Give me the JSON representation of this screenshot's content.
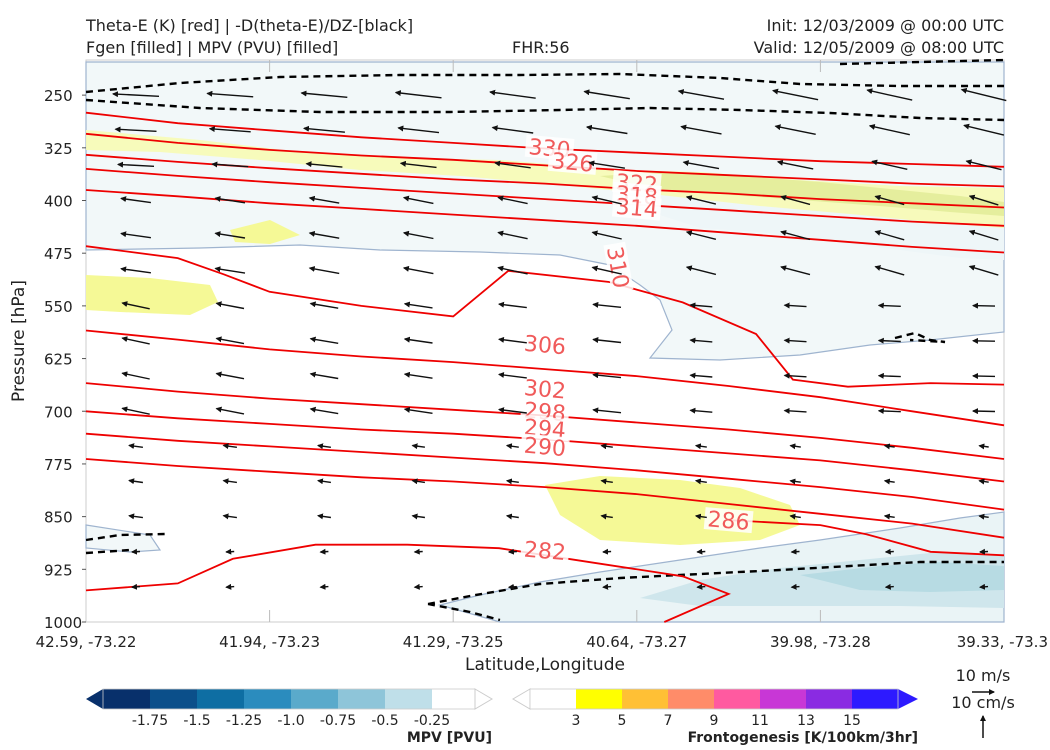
{
  "header": {
    "title_left_1": "Theta-E (K) [red] | -D(theta-E)/DZ-[black]",
    "title_left_2": "Fgen [filled] | MPV (PVU) [filled]",
    "fhr": "FHR:56",
    "init": "Init: 12/03/2009 @ 00:00 UTC",
    "valid": "Valid: 12/05/2009 @ 08:00 UTC"
  },
  "chart_data": {
    "type": "cross-section",
    "ylabel": "Pressure [hPa]",
    "xlabel": "Latitude,Longitude",
    "y_ticks": [
      "250",
      "325",
      "400",
      "475",
      "550",
      "625",
      "700",
      "775",
      "850",
      "925",
      "1000"
    ],
    "ylim": [
      1000,
      200
    ],
    "x_ticks": [
      "42.59, -73.22",
      "41.94, -73.23",
      "41.29, -73.25",
      "40.64, -73.27",
      "39.98, -73.28",
      "39.33, -73.3"
    ],
    "theta_e_contours": [
      {
        "label": "330",
        "points": [
          [
            0,
            275
          ],
          [
            10,
            290
          ],
          [
            20,
            300
          ],
          [
            30,
            310
          ],
          [
            40,
            318
          ],
          [
            50,
            326
          ],
          [
            60,
            332
          ],
          [
            70,
            338
          ],
          [
            80,
            344
          ],
          [
            90,
            348
          ],
          [
            100,
            352
          ]
        ]
      },
      {
        "label": "326",
        "points": [
          [
            0,
            305
          ],
          [
            10,
            318
          ],
          [
            20,
            328
          ],
          [
            30,
            336
          ],
          [
            40,
            342
          ],
          [
            50,
            350
          ],
          [
            60,
            358
          ],
          [
            70,
            364
          ],
          [
            80,
            370
          ],
          [
            90,
            376
          ],
          [
            100,
            380
          ]
        ]
      },
      {
        "label": "322",
        "points": [
          [
            0,
            335
          ],
          [
            10,
            345
          ],
          [
            20,
            354
          ],
          [
            30,
            362
          ],
          [
            40,
            370
          ],
          [
            50,
            376
          ],
          [
            60,
            384
          ],
          [
            70,
            390
          ],
          [
            80,
            398
          ],
          [
            90,
            404
          ],
          [
            100,
            410
          ]
        ]
      },
      {
        "label": "318",
        "points": [
          [
            0,
            355
          ],
          [
            10,
            365
          ],
          [
            20,
            374
          ],
          [
            30,
            382
          ],
          [
            40,
            390
          ],
          [
            50,
            398
          ],
          [
            60,
            406
          ],
          [
            70,
            414
          ],
          [
            80,
            422
          ],
          [
            90,
            430
          ],
          [
            100,
            436
          ]
        ]
      },
      {
        "label": "314",
        "points": [
          [
            0,
            385
          ],
          [
            10,
            394
          ],
          [
            20,
            404
          ],
          [
            30,
            412
          ],
          [
            40,
            420
          ],
          [
            50,
            428
          ],
          [
            60,
            436
          ],
          [
            70,
            446
          ],
          [
            80,
            456
          ],
          [
            90,
            466
          ],
          [
            100,
            474
          ]
        ]
      },
      {
        "label": "310",
        "points": [
          [
            0,
            465
          ],
          [
            10,
            482
          ],
          [
            15,
            505
          ],
          [
            20,
            530
          ],
          [
            30,
            550
          ],
          [
            40,
            565
          ],
          [
            46,
            500
          ],
          [
            57,
            516
          ],
          [
            65,
            545
          ],
          [
            73,
            590
          ],
          [
            77,
            655
          ],
          [
            83,
            665
          ],
          [
            92,
            660
          ],
          [
            100,
            662
          ]
        ]
      },
      {
        "label": "306",
        "points": [
          [
            0,
            585
          ],
          [
            10,
            598
          ],
          [
            20,
            612
          ],
          [
            30,
            622
          ],
          [
            40,
            630
          ],
          [
            50,
            640
          ],
          [
            60,
            650
          ],
          [
            70,
            664
          ],
          [
            80,
            680
          ],
          [
            90,
            700
          ],
          [
            100,
            720
          ]
        ]
      },
      {
        "label": "302",
        "points": [
          [
            0,
            660
          ],
          [
            10,
            672
          ],
          [
            20,
            682
          ],
          [
            30,
            690
          ],
          [
            40,
            698
          ],
          [
            50,
            706
          ],
          [
            60,
            716
          ],
          [
            70,
            726
          ],
          [
            80,
            738
          ],
          [
            90,
            752
          ],
          [
            100,
            768
          ]
        ]
      },
      {
        "label": "298",
        "points": [
          [
            0,
            700
          ],
          [
            10,
            710
          ],
          [
            20,
            718
          ],
          [
            30,
            726
          ],
          [
            40,
            732
          ],
          [
            50,
            740
          ],
          [
            60,
            750
          ],
          [
            70,
            760
          ],
          [
            80,
            770
          ],
          [
            90,
            784
          ],
          [
            100,
            800
          ]
        ]
      },
      {
        "label": "294",
        "points": [
          [
            0,
            732
          ],
          [
            10,
            742
          ],
          [
            20,
            750
          ],
          [
            30,
            758
          ],
          [
            40,
            766
          ],
          [
            50,
            774
          ],
          [
            60,
            784
          ],
          [
            70,
            796
          ],
          [
            80,
            808
          ],
          [
            90,
            822
          ],
          [
            100,
            840
          ]
        ]
      },
      {
        "label": "290",
        "points": [
          [
            0,
            768
          ],
          [
            10,
            778
          ],
          [
            20,
            786
          ],
          [
            30,
            794
          ],
          [
            40,
            800
          ],
          [
            50,
            808
          ],
          [
            60,
            818
          ],
          [
            70,
            832
          ],
          [
            80,
            846
          ],
          [
            90,
            860
          ],
          [
            100,
            880
          ]
        ]
      },
      {
        "label": "286",
        "points": [
          [
            70,
            855
          ],
          [
            80,
            862
          ],
          [
            85,
            875
          ],
          [
            92,
            900
          ],
          [
            100,
            905
          ]
        ]
      },
      {
        "label": "282",
        "points": [
          [
            0,
            955
          ],
          [
            10,
            945
          ],
          [
            16,
            910
          ],
          [
            25,
            890
          ],
          [
            35,
            890
          ],
          [
            45,
            895
          ],
          [
            55,
            915
          ],
          [
            65,
            935
          ],
          [
            70,
            960
          ],
          [
            63,
            1000
          ]
        ]
      }
    ],
    "contour_label_positions": {
      "330": [
        50.5,
        325
      ],
      "326": [
        53,
        345
      ],
      "322": [
        60,
        375
      ],
      "318": [
        60,
        392
      ],
      "314": [
        60,
        410
      ],
      "310": [
        58,
        495
      ],
      "306": [
        50,
        605
      ],
      "302": [
        50,
        668
      ],
      "298": [
        50,
        700
      ],
      "294": [
        50,
        724
      ],
      "290": [
        50,
        750
      ],
      "286": [
        70,
        855
      ],
      "282": [
        50,
        898
      ]
    },
    "mpv_colorbar": {
      "label": "MPV [PVU]",
      "ticks": [
        "-1.75",
        "-1.5",
        "-1.25",
        "-1.0",
        "-0.75",
        "-0.5",
        "-0.25"
      ],
      "colors": [
        "#08306b",
        "#08306b",
        "#0b4f8a",
        "#0e6ea3",
        "#2b8cbe",
        "#5aaacb",
        "#8ec5d9",
        "#bfdfe9"
      ]
    },
    "fgen_colorbar": {
      "label": "Frontogenesis [K/100km/3hr]",
      "ticks": [
        "3",
        "5",
        "7",
        "9",
        "11",
        "13",
        "15"
      ],
      "colors": [
        "#ffff00",
        "#ffc035",
        "#ff8c69",
        "#ff5aa0",
        "#c837d6",
        "#8a2be2",
        "#2d1aff"
      ]
    },
    "wind_legend": {
      "horizontal": "10 m/s",
      "vertical": "10 cm/s"
    }
  }
}
